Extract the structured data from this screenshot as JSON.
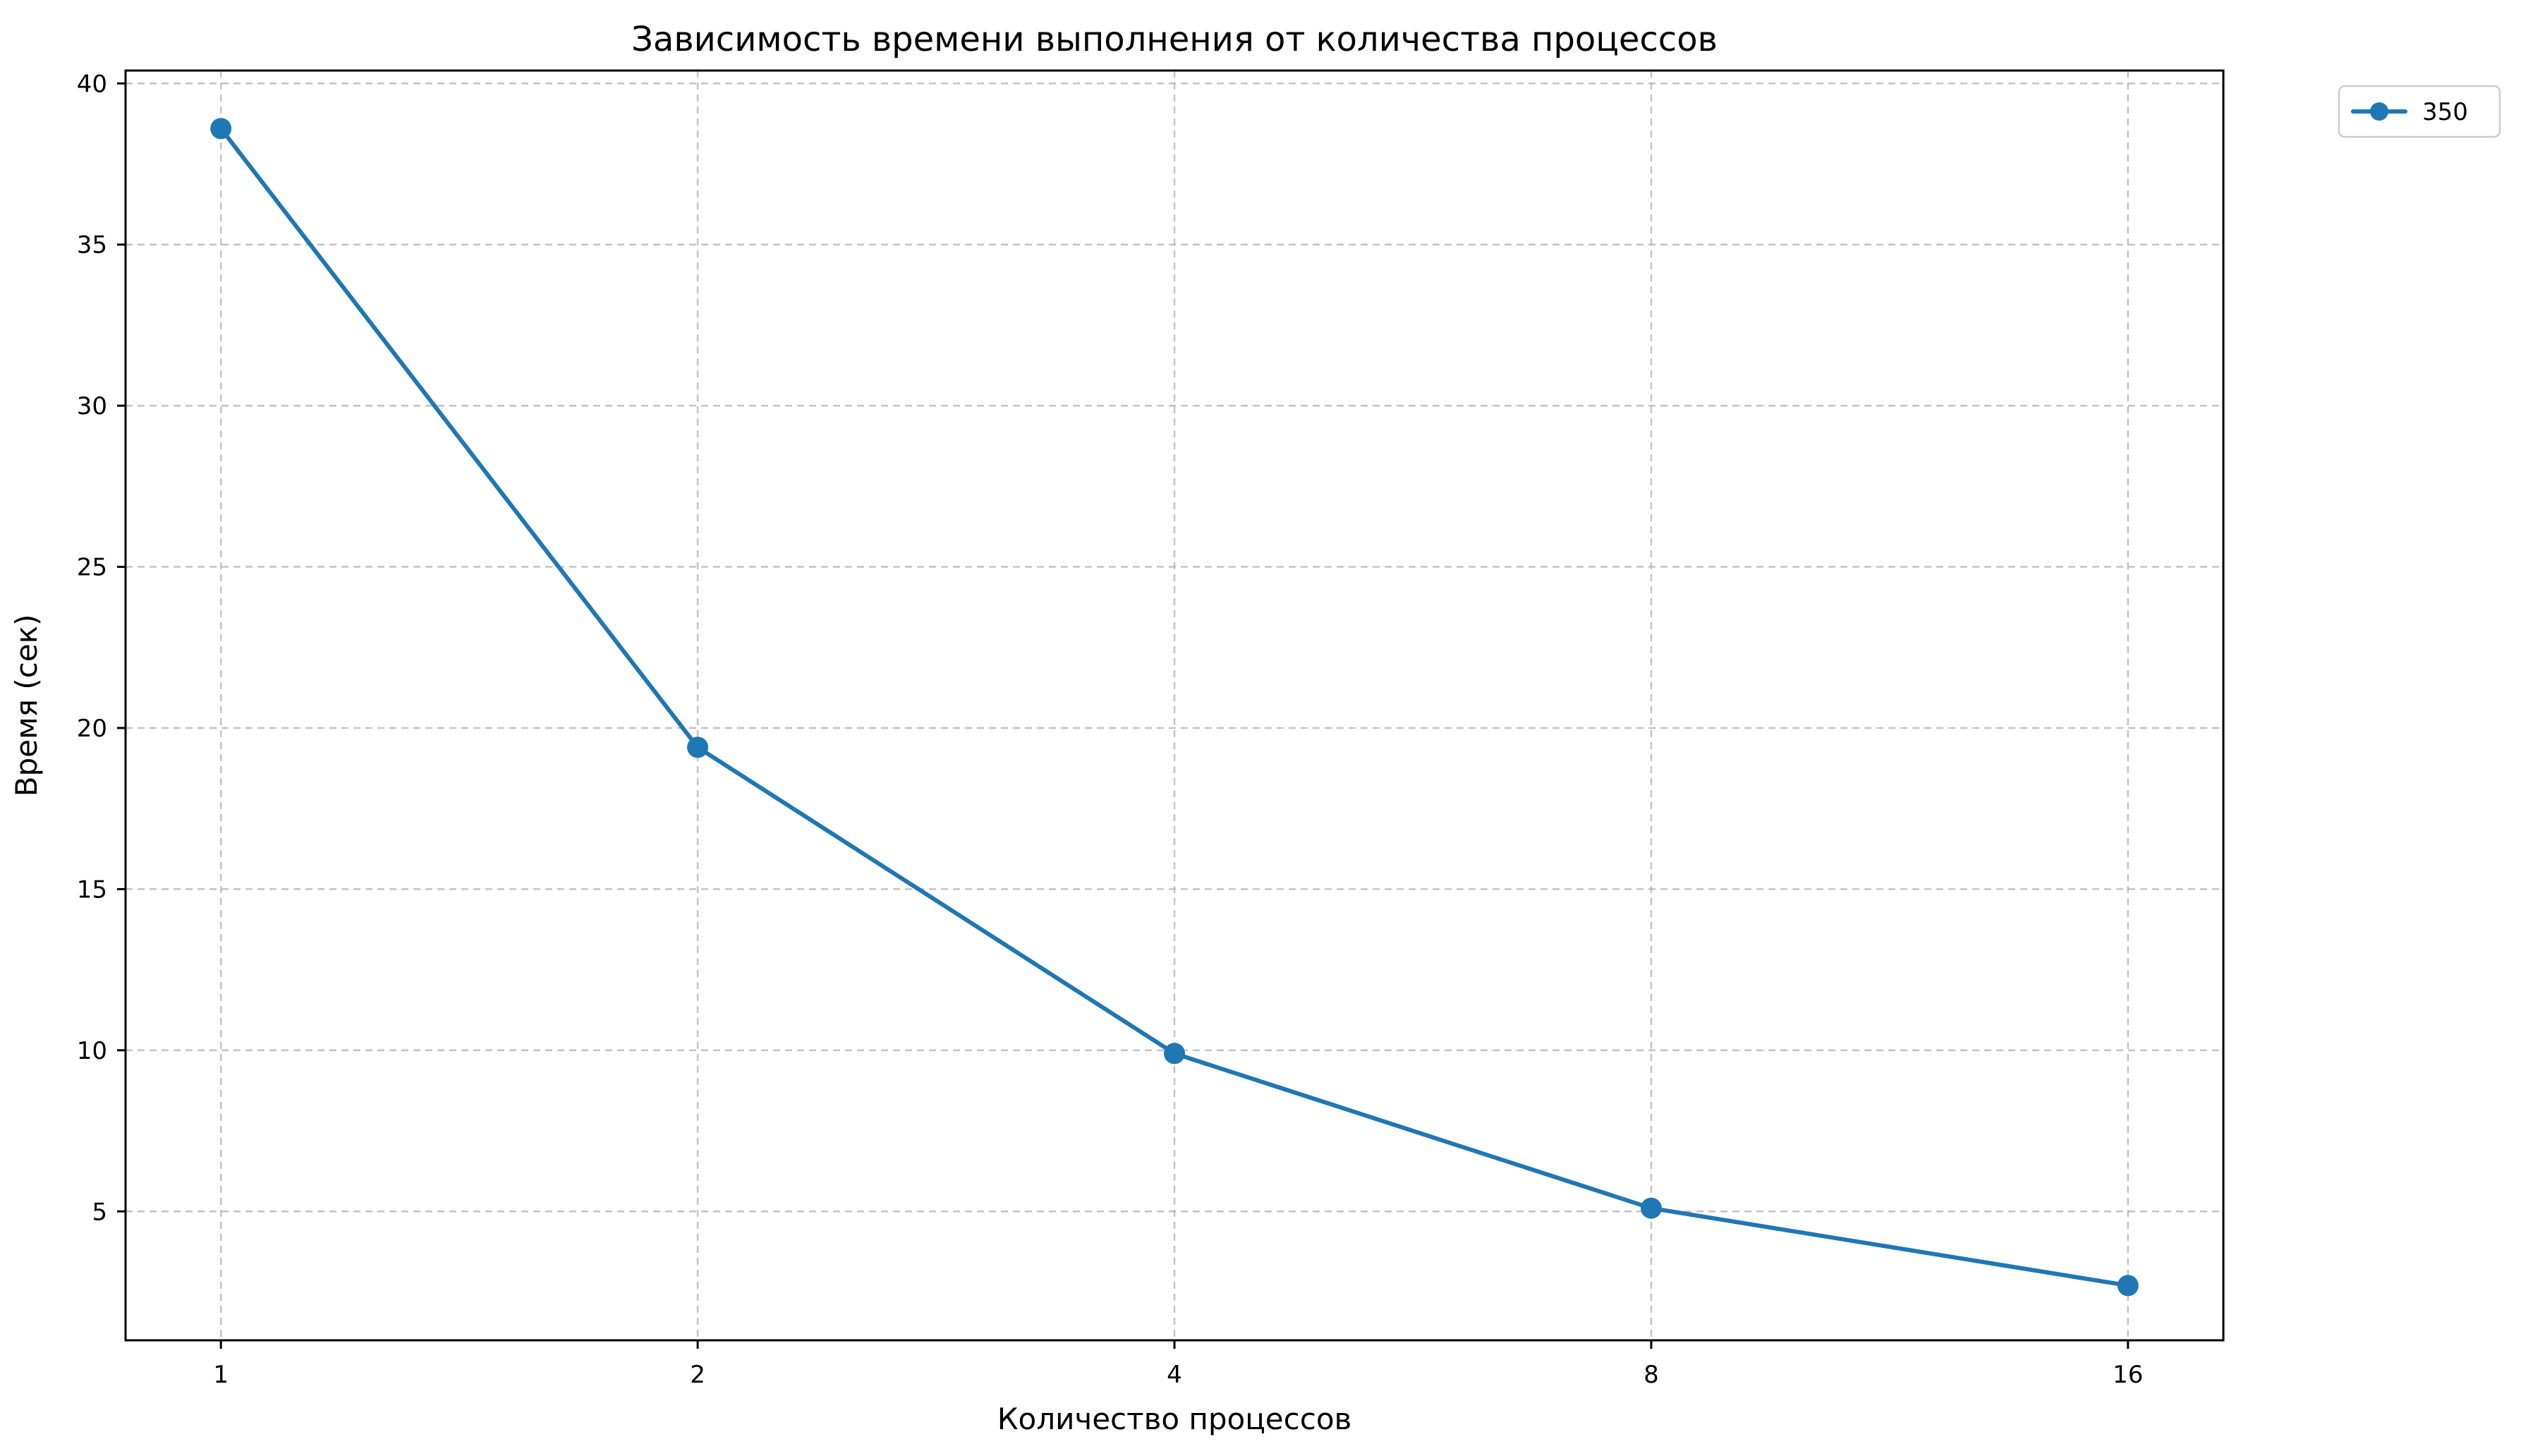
{
  "chart_data": {
    "type": "line",
    "title": "Зависимость времени выполнения от количества процессов",
    "xlabel": "Количество процессов",
    "ylabel": "Время (сек)",
    "x_scale": "log2",
    "categories": [
      "1",
      "2",
      "4",
      "8",
      "16"
    ],
    "x": [
      1,
      2,
      4,
      8,
      16
    ],
    "ylim": [
      1,
      40.4
    ],
    "yticks": [
      5,
      10,
      15,
      20,
      25,
      30,
      35,
      40
    ],
    "grid": true,
    "legend_position": "outside-top-right",
    "series": [
      {
        "name": "350",
        "color": "#1f77b4",
        "marker": "circle",
        "values": [
          38.6,
          19.4,
          9.9,
          5.1,
          2.7
        ]
      }
    ]
  }
}
